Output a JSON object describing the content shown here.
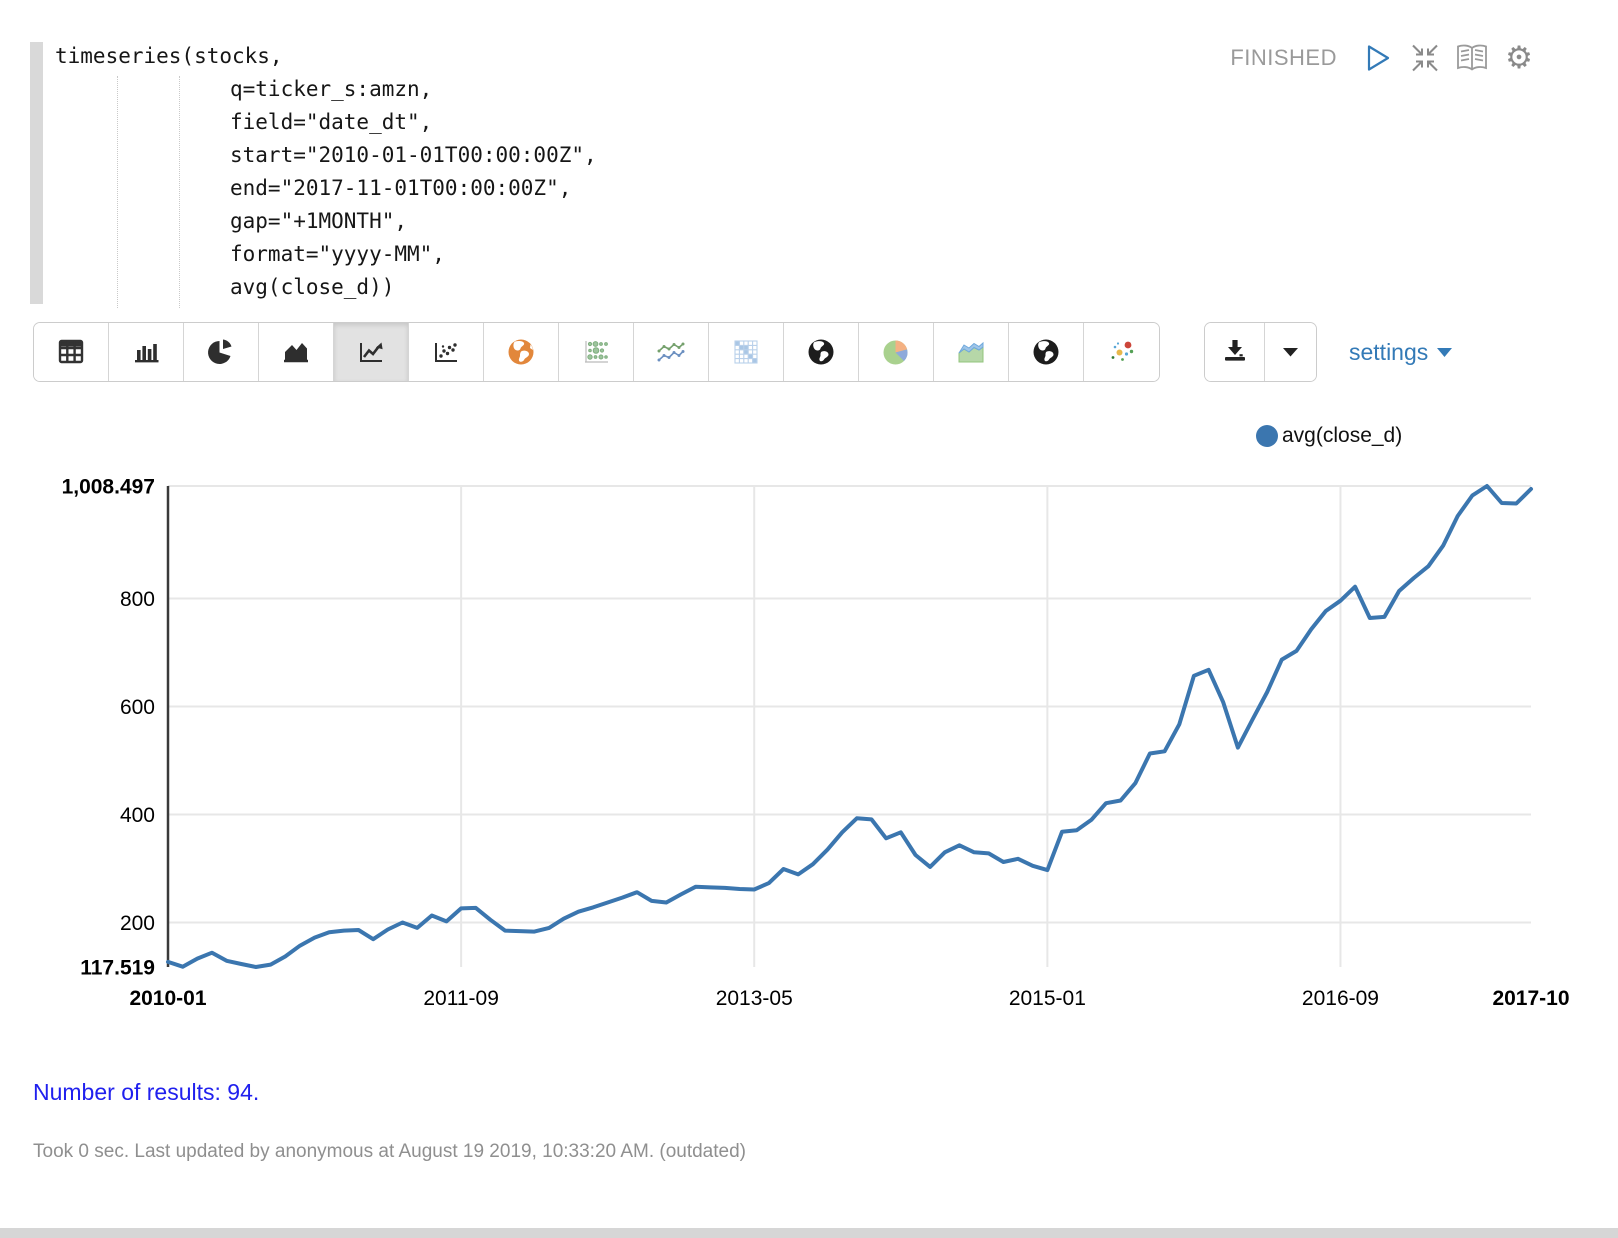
{
  "paragraph": {
    "status": "FINISHED",
    "code_lines": [
      "timeseries(stocks,",
      "q=ticker_s:amzn,",
      "field=\"date_dt\",",
      "start=\"2010-01-01T00:00:00Z\",",
      "end=\"2017-11-01T00:00:00Z\",",
      "gap=\"+1MONTH\",",
      "format=\"yyyy-MM\",",
      "avg(close_d))"
    ],
    "actions": [
      {
        "id": "run",
        "icon": "play-icon"
      },
      {
        "id": "collapse",
        "icon": "collapse-icon"
      },
      {
        "id": "show-editor",
        "icon": "book-icon"
      },
      {
        "id": "gear",
        "icon": "gear-icon"
      }
    ]
  },
  "toolbar": {
    "settings_label": "settings",
    "chart_types": [
      {
        "id": "table",
        "icon": "table-icon",
        "selected": false
      },
      {
        "id": "bar",
        "icon": "bar-chart-icon",
        "selected": false
      },
      {
        "id": "pie",
        "icon": "pie-chart-icon",
        "selected": false
      },
      {
        "id": "area",
        "icon": "area-chart-icon",
        "selected": false
      },
      {
        "id": "line",
        "icon": "line-chart-icon",
        "selected": true
      },
      {
        "id": "scatter",
        "icon": "scatter-icon",
        "selected": false
      },
      {
        "id": "map-orange",
        "icon": "globe-orange-icon",
        "selected": false
      },
      {
        "id": "bubble-matrix",
        "icon": "dot-matrix-icon",
        "selected": false
      },
      {
        "id": "multi-line",
        "icon": "multi-line-icon",
        "selected": false
      },
      {
        "id": "heatmap",
        "icon": "grid-heatmap-icon",
        "selected": false
      },
      {
        "id": "map-dark-1",
        "icon": "globe-dark-icon",
        "selected": false
      },
      {
        "id": "pie-color",
        "icon": "pie-color-icon",
        "selected": false
      },
      {
        "id": "area-color",
        "icon": "area-color-icon",
        "selected": false
      },
      {
        "id": "map-dark-2",
        "icon": "globe-dark-icon",
        "selected": false
      },
      {
        "id": "scatter-color",
        "icon": "scatter-color-icon",
        "selected": false
      }
    ]
  },
  "colors": {
    "accent_blue": "#337ab7",
    "series_blue": "#3b76af",
    "results_blue": "#2020ee",
    "status_gray": "#9a9a9a"
  },
  "chart_data": {
    "type": "line",
    "title": "",
    "xlabel": "",
    "ylabel": "",
    "legend_position": "top-right",
    "grid": true,
    "ylim": [
      117.519,
      1008.497
    ],
    "series": [
      {
        "name": "avg(close_d)",
        "color": "#3b76af",
        "values": [
          127,
          118,
          133,
          144,
          129,
          123,
          117.519,
          122,
          137,
          157,
          172,
          182,
          185,
          186,
          169,
          187,
          200,
          190,
          213,
          202,
          226,
          227,
          205,
          185,
          184,
          183,
          190,
          207,
          220,
          228,
          237,
          246,
          256,
          240,
          237,
          252,
          266,
          265,
          264,
          262,
          261,
          273,
          299,
          289,
          308,
          335,
          367,
          393,
          391,
          356,
          367,
          325,
          303,
          330,
          343,
          330,
          328,
          312,
          318,
          305,
          297,
          368,
          371,
          390,
          421,
          426,
          458,
          513,
          517,
          567,
          657,
          668,
          608,
          524,
          576,
          627,
          687,
          703,
          743,
          777,
          796,
          822,
          764,
          766,
          814,
          838,
          860,
          898,
          953,
          991,
          1008.497,
          977,
          976,
          1003
        ]
      }
    ],
    "x": [
      "2010-01",
      "2010-02",
      "2010-03",
      "2010-04",
      "2010-05",
      "2010-06",
      "2010-07",
      "2010-08",
      "2010-09",
      "2010-10",
      "2010-11",
      "2010-12",
      "2011-01",
      "2011-02",
      "2011-03",
      "2011-04",
      "2011-05",
      "2011-06",
      "2011-07",
      "2011-08",
      "2011-09",
      "2011-10",
      "2011-11",
      "2011-12",
      "2012-01",
      "2012-02",
      "2012-03",
      "2012-04",
      "2012-05",
      "2012-06",
      "2012-07",
      "2012-08",
      "2012-09",
      "2012-10",
      "2012-11",
      "2012-12",
      "2013-01",
      "2013-02",
      "2013-03",
      "2013-04",
      "2013-05",
      "2013-06",
      "2013-07",
      "2013-08",
      "2013-09",
      "2013-10",
      "2013-11",
      "2013-12",
      "2014-01",
      "2014-02",
      "2014-03",
      "2014-04",
      "2014-05",
      "2014-06",
      "2014-07",
      "2014-08",
      "2014-09",
      "2014-10",
      "2014-11",
      "2014-12",
      "2015-01",
      "2015-02",
      "2015-03",
      "2015-04",
      "2015-05",
      "2015-06",
      "2015-07",
      "2015-08",
      "2015-09",
      "2015-10",
      "2015-11",
      "2015-12",
      "2016-01",
      "2016-02",
      "2016-03",
      "2016-04",
      "2016-05",
      "2016-06",
      "2016-07",
      "2016-08",
      "2016-09",
      "2016-10",
      "2016-11",
      "2016-12",
      "2017-01",
      "2017-02",
      "2017-03",
      "2017-04",
      "2017-05",
      "2017-06",
      "2017-07",
      "2017-08",
      "2017-09",
      "2017-10"
    ],
    "y_axis": {
      "ticks": [
        {
          "label": "1,008.497",
          "value": 1008.497,
          "bold": true
        },
        {
          "label": "800",
          "value": 800,
          "bold": false
        },
        {
          "label": "600",
          "value": 600,
          "bold": false
        },
        {
          "label": "400",
          "value": 400,
          "bold": false
        },
        {
          "label": "200",
          "value": 200,
          "bold": false
        },
        {
          "label": "117.519",
          "value": 117.519,
          "bold": true
        }
      ]
    },
    "x_axis": {
      "ticks": [
        {
          "label": "2010-01",
          "index": 0,
          "bold": true
        },
        {
          "label": "2011-09",
          "index": 20,
          "bold": false
        },
        {
          "label": "2013-05",
          "index": 40,
          "bold": false
        },
        {
          "label": "2015-01",
          "index": 60,
          "bold": false
        },
        {
          "label": "2016-09",
          "index": 80,
          "bold": false
        },
        {
          "label": "2017-10",
          "index": 93,
          "bold": true
        }
      ]
    }
  },
  "footer": {
    "results_text": "Number of results: 94.",
    "status_line": "Took 0 sec. Last updated by anonymous at August 19 2019, 10:33:20 AM. (outdated)"
  }
}
